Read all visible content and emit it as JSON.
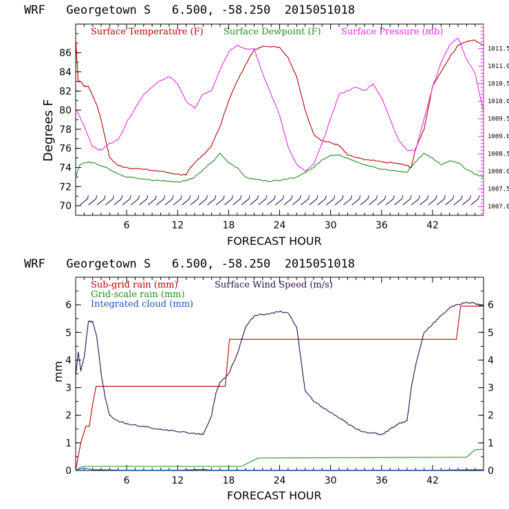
{
  "chart_data": [
    {
      "type": "line",
      "title": "WRF   Georgetown S   6.500, -58.250  2015051018",
      "xlabel": "FORECAST HOUR",
      "ylabel": "Degrees F",
      "xlim": [
        0,
        48
      ],
      "x_ticks": [
        6,
        12,
        18,
        24,
        30,
        36,
        42
      ],
      "ylim": [
        69,
        89
      ],
      "y_ticks": [
        70,
        72,
        74,
        76,
        78,
        80,
        82,
        84,
        86
      ],
      "y2_ticks": [
        "1007.0",
        "1007.5",
        "1008.0",
        "1008.5",
        "1009.0",
        "1009.5",
        "1010.0",
        "1010.5",
        "1011.0",
        "1011.5"
      ],
      "y2lim": [
        1006.75,
        1012.2
      ],
      "legend": "top",
      "series": [
        {
          "name": "Surface Temperature (F)",
          "color": "#b40000",
          "axis": "left",
          "x": [
            0,
            0.3,
            0.6,
            1,
            1.5,
            2,
            2.5,
            3,
            3.5,
            4,
            5,
            6,
            8,
            10,
            12,
            13,
            13.5,
            14,
            15,
            16,
            17,
            18,
            19,
            20,
            21,
            22,
            24,
            25,
            26,
            27,
            28,
            29,
            30,
            31,
            32,
            34,
            36,
            38,
            39,
            39.5,
            40,
            41,
            42,
            43,
            44,
            45,
            46,
            47,
            48
          ],
          "y": [
            87.5,
            83,
            83,
            82.5,
            82.5,
            81.5,
            80.5,
            79,
            77,
            75,
            74.2,
            74,
            73.8,
            73.6,
            73.3,
            73.2,
            74,
            74.5,
            75.3,
            76.3,
            78.3,
            81,
            83,
            84.8,
            86.3,
            86.7,
            86.6,
            85.5,
            83.5,
            80,
            77.5,
            76.8,
            76.6,
            76.3,
            75.3,
            74.8,
            74.6,
            74.4,
            74.2,
            74,
            76,
            78,
            82.5,
            84,
            85.5,
            86.8,
            87.2,
            87.3,
            86.8
          ]
        },
        {
          "name": "Surface Dewpoint (F)",
          "color": "#1e8c1e",
          "axis": "left",
          "x": [
            0,
            0.5,
            1,
            2,
            3,
            4,
            5,
            6,
            8,
            10,
            12,
            13,
            14,
            15,
            16,
            17,
            18,
            19,
            20,
            22,
            24,
            26,
            28,
            29,
            30,
            31,
            32,
            34,
            36,
            38,
            39,
            40,
            41,
            42,
            43,
            44,
            45,
            46,
            47,
            48
          ],
          "y": [
            73,
            74.3,
            74.5,
            74.5,
            74.2,
            73.8,
            73.3,
            73,
            72.8,
            72.6,
            72.5,
            72.6,
            73,
            73.8,
            74.5,
            75.5,
            74.5,
            74,
            73,
            72.6,
            72.6,
            73,
            74,
            74.8,
            75.3,
            75.3,
            75,
            74.3,
            73.8,
            73.6,
            73.5,
            74.6,
            75.5,
            75,
            74.3,
            74.7,
            74.5,
            73.8,
            73.3,
            73
          ]
        },
        {
          "name": "Surface Pressure (mb)",
          "color": "#e628e6",
          "axis": "right",
          "x": [
            0,
            1,
            2,
            3,
            4,
            5,
            6,
            7,
            8,
            9,
            10,
            11,
            12,
            13,
            14,
            15,
            16,
            17,
            18,
            19,
            20,
            21,
            22,
            23,
            24,
            25,
            26,
            27,
            28,
            29,
            30,
            31,
            32,
            33,
            34,
            35,
            36,
            37,
            38,
            39,
            40,
            41,
            42,
            43,
            44,
            45,
            46,
            47,
            48
          ],
          "y": [
            1009.8,
            1009.3,
            1008.7,
            1008.6,
            1008.8,
            1008.9,
            1009.4,
            1009.8,
            1010.2,
            1010.4,
            1010.6,
            1010.7,
            1010.5,
            1010.0,
            1009.8,
            1010.2,
            1010.3,
            1010.9,
            1011.4,
            1011.6,
            1011.5,
            1011.5,
            1010.8,
            1010.2,
            1009.6,
            1008.7,
            1008.2,
            1008.0,
            1008.2,
            1008.8,
            1009.5,
            1010.2,
            1010.3,
            1010.4,
            1010.3,
            1010.5,
            1010.1,
            1009.5,
            1008.9,
            1008.6,
            1008.6,
            1009.5,
            1010.4,
            1011.1,
            1011.6,
            1011.8,
            1011.2,
            1010.8,
            1009.7
          ]
        }
      ]
    },
    {
      "type": "line",
      "title": "WRF   Georgetown S   6.500, -58.250  2015051018",
      "xlabel": "FORECAST HOUR",
      "ylabel": "mm",
      "xlim": [
        0,
        48
      ],
      "x_ticks": [
        6,
        12,
        18,
        24,
        30,
        36,
        42
      ],
      "ylim": [
        0,
        7
      ],
      "y_ticks": [
        0,
        1,
        2,
        3,
        4,
        5,
        6
      ],
      "y2lim": [
        0,
        7
      ],
      "y2_ticks": [
        0,
        1,
        2,
        3,
        4,
        5,
        6
      ],
      "legend": "top-left",
      "series": [
        {
          "name": "Sub-grid rain (mm)",
          "color": "#b40000",
          "axis": "left",
          "x": [
            0,
            0.6,
            1.2,
            1.6,
            2,
            2.4,
            17.6,
            18.1,
            44.8,
            45.3,
            48
          ],
          "y": [
            0,
            1.0,
            1.6,
            1.6,
            2.4,
            3.05,
            3.05,
            4.75,
            4.75,
            5.95,
            5.95
          ]
        },
        {
          "name": "Grid-scale rain (mm)",
          "color": "#1e8c1e",
          "axis": "left",
          "x": [
            0,
            0.6,
            1,
            19.5,
            20.5,
            21.5,
            46,
            47,
            48
          ],
          "y": [
            0,
            0.12,
            0.15,
            0.15,
            0.3,
            0.45,
            0.48,
            0.75,
            0.77
          ]
        },
        {
          "name": "Integrated cloud (mm)",
          "color": "#1450c8",
          "axis": "left",
          "x": [
            0,
            1,
            2,
            6,
            12,
            15,
            16,
            24,
            30,
            36,
            42,
            48
          ],
          "y": [
            0.02,
            0.08,
            0.03,
            0.01,
            0.01,
            0.04,
            0.01,
            0.01,
            0.01,
            0.01,
            0.01,
            0.03
          ]
        },
        {
          "name": "Surface Wind Speed (m/s)",
          "color": "#2a0a50",
          "axis": "right",
          "x": [
            0,
            0.3,
            0.6,
            1,
            1.5,
            2,
            2.5,
            3,
            3.5,
            4,
            5,
            6,
            8,
            10,
            12,
            14,
            15,
            16,
            16.5,
            17,
            18,
            19,
            20,
            21,
            22,
            23,
            24,
            25,
            26,
            27,
            28,
            29,
            30,
            31,
            32,
            33,
            34,
            35,
            36,
            37,
            38,
            39,
            39.5,
            40,
            41,
            42,
            43,
            44,
            45,
            46,
            47,
            48
          ],
          "y": [
            3.4,
            4.3,
            3.6,
            4.1,
            5.4,
            5.4,
            4.8,
            3.5,
            2.6,
            2.0,
            1.8,
            1.7,
            1.6,
            1.5,
            1.4,
            1.35,
            1.3,
            2.0,
            2.8,
            3.2,
            3.5,
            4.2,
            5.2,
            5.6,
            5.65,
            5.7,
            5.75,
            5.7,
            5.2,
            2.9,
            2.5,
            2.3,
            2.1,
            1.9,
            1.7,
            1.5,
            1.4,
            1.35,
            1.3,
            1.5,
            1.7,
            1.8,
            3.0,
            3.8,
            5.0,
            5.3,
            5.6,
            5.9,
            6.0,
            6.1,
            6.05,
            5.95
          ]
        }
      ]
    }
  ]
}
